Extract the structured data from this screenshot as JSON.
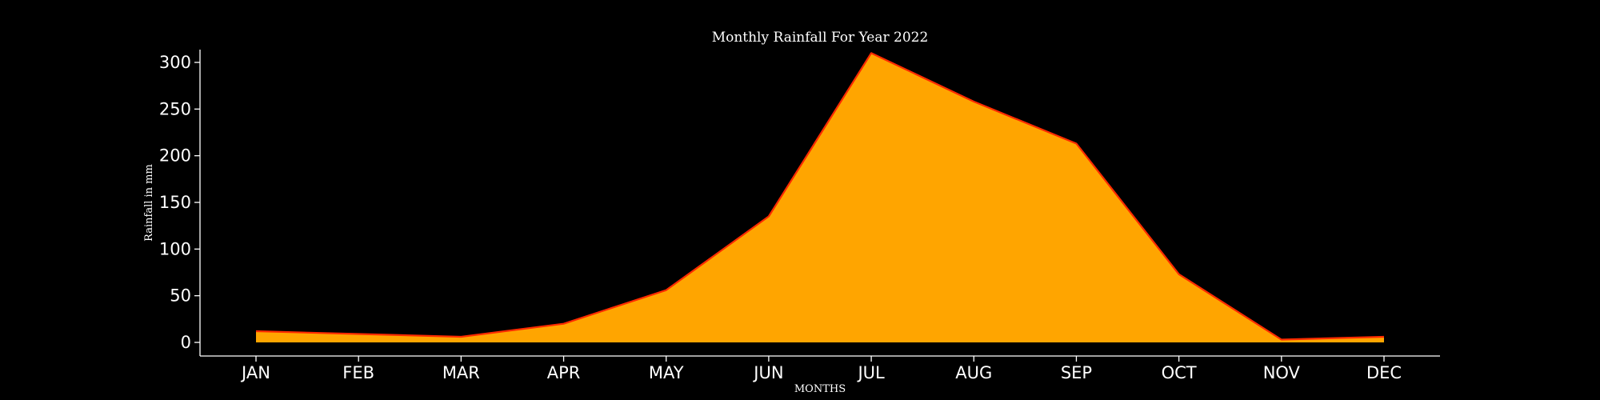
{
  "chart_data": {
    "type": "area",
    "title": "Monthly Rainfall For Year 2022",
    "xlabel": "MONTHS",
    "ylabel": "Rainfall in mm",
    "categories": [
      "JAN",
      "FEB",
      "MAR",
      "APR",
      "MAY",
      "JUN",
      "JUL",
      "AUG",
      "SEP",
      "OCT",
      "NOV",
      "DEC"
    ],
    "series": [
      {
        "values": [
          12,
          9,
          6,
          20,
          56,
          135,
          310,
          258,
          213,
          73,
          3,
          6
        ]
      }
    ],
    "baseline_band": [
      3,
      3,
      3,
      3,
      3,
      3,
      3,
      3,
      3,
      3,
      3,
      3
    ],
    "yticks": [
      0,
      50,
      100,
      150,
      200,
      250,
      300
    ],
    "ylim": [
      -15,
      325
    ],
    "grid": false,
    "fill_color": "#FFA500",
    "line_color": "#FF2A00",
    "background_color": "#000000"
  }
}
